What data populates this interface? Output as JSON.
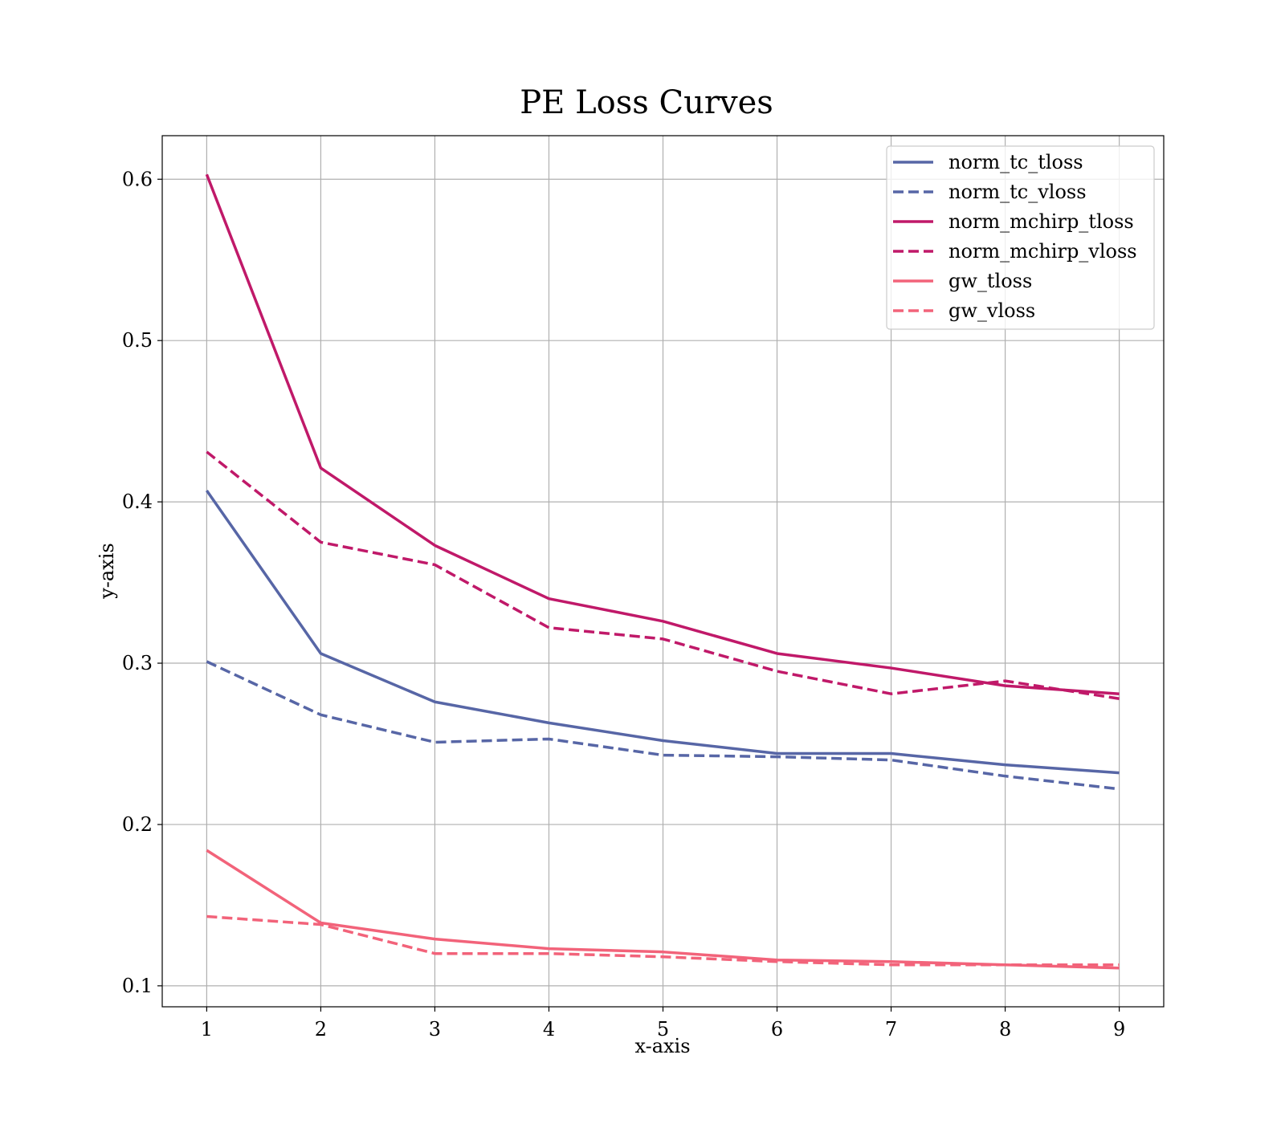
{
  "chart_data": {
    "type": "line",
    "title": "PE Loss Curves",
    "xlabel": "x-axis",
    "ylabel": "y-axis",
    "x": [
      1,
      2,
      3,
      4,
      5,
      6,
      7,
      8,
      9
    ],
    "xticks": [
      "1",
      "2",
      "3",
      "4",
      "5",
      "6",
      "7",
      "8",
      "9"
    ],
    "yticks": [
      "0.1",
      "0.2",
      "0.3",
      "0.4",
      "0.5",
      "0.6"
    ],
    "ytick_values": [
      0.1,
      0.2,
      0.3,
      0.4,
      0.5,
      0.6
    ],
    "xlim": [
      0.61,
      9.39
    ],
    "ylim": [
      0.087,
      0.627
    ],
    "grid": true,
    "legend_position": "top-right",
    "series": [
      {
        "name": "norm_tc_tloss",
        "color": "#5766a6",
        "dash": "solid",
        "values": [
          0.407,
          0.306,
          0.276,
          0.263,
          0.252,
          0.244,
          0.244,
          0.237,
          0.232
        ]
      },
      {
        "name": "norm_tc_vloss",
        "color": "#5766a6",
        "dash": "dashed",
        "values": [
          0.301,
          0.268,
          0.251,
          0.253,
          0.243,
          0.242,
          0.24,
          0.23,
          0.222
        ]
      },
      {
        "name": "norm_mchirp_tloss",
        "color": "#c01969",
        "dash": "solid",
        "values": [
          0.603,
          0.421,
          0.373,
          0.34,
          0.326,
          0.306,
          0.297,
          0.286,
          0.281
        ]
      },
      {
        "name": "norm_mchirp_vloss",
        "color": "#c01969",
        "dash": "dashed",
        "values": [
          0.431,
          0.375,
          0.361,
          0.322,
          0.315,
          0.295,
          0.281,
          0.289,
          0.278
        ]
      },
      {
        "name": "gw_tloss",
        "color": "#f2637a",
        "dash": "solid",
        "values": [
          0.184,
          0.139,
          0.129,
          0.123,
          0.121,
          0.116,
          0.115,
          0.113,
          0.111
        ]
      },
      {
        "name": "gw_vloss",
        "color": "#f2637a",
        "dash": "dashed",
        "values": [
          0.143,
          0.138,
          0.12,
          0.12,
          0.118,
          0.115,
          0.113,
          0.113,
          0.113
        ]
      }
    ]
  }
}
